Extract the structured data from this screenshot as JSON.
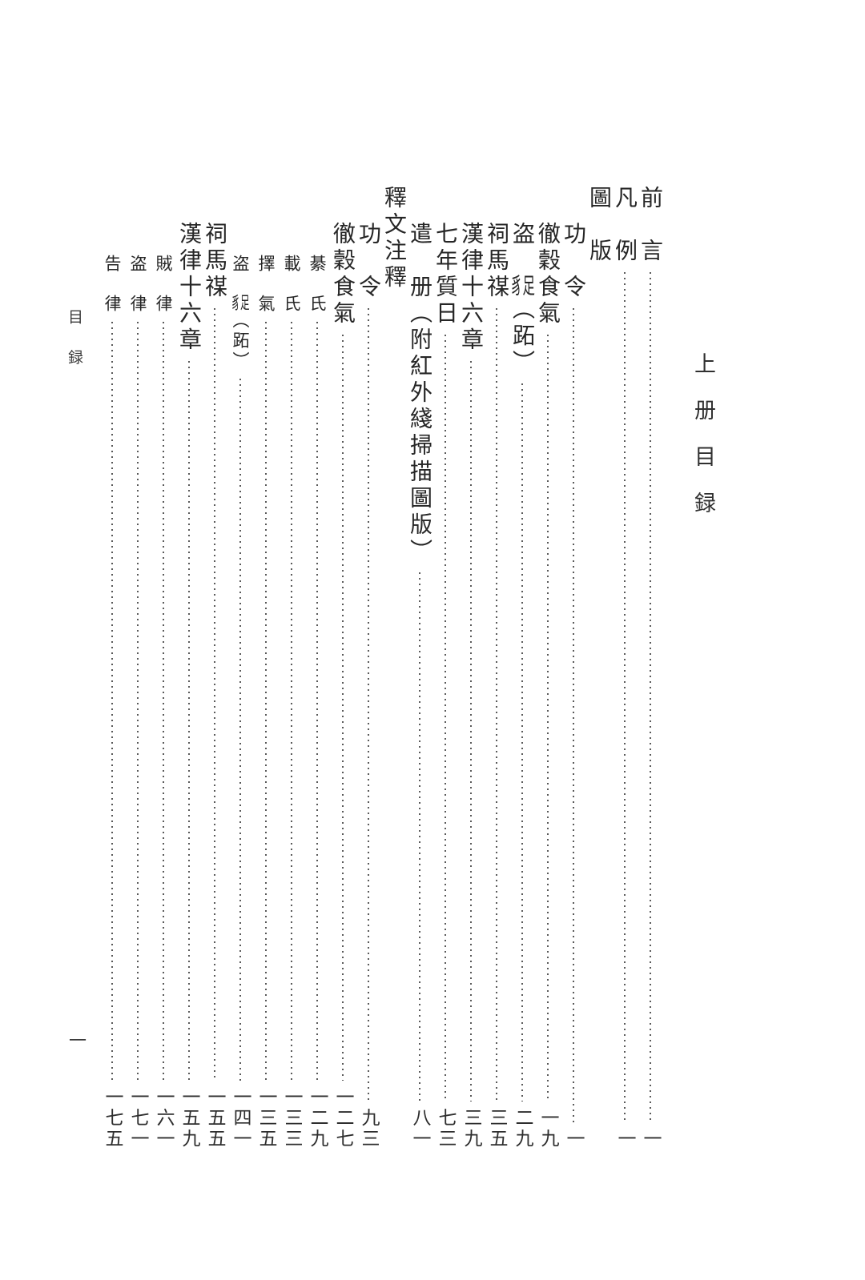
{
  "page": {
    "background": "#ffffff",
    "ink_color": "#262626"
  },
  "volume_title": "上册目録",
  "margin_header": "目録",
  "folio": "一",
  "toc": {
    "entries": [
      {
        "type": "heading",
        "title": "前　言",
        "page": "一"
      },
      {
        "type": "heading",
        "title": "凡　例",
        "page": "一"
      },
      {
        "type": "heading",
        "title": "圖　版",
        "page": null
      },
      {
        "type": "entry",
        "title": "功　令",
        "page": "一"
      },
      {
        "type": "entry",
        "title": "徹穀食氣",
        "page": "一九"
      },
      {
        "type": "entry",
        "title_parts": [
          {
            "text": "盗　"
          },
          {
            "text": "豸足",
            "combine": true
          },
          {
            "text": "（跖）"
          }
        ],
        "page": "二九"
      },
      {
        "type": "entry",
        "title": "祠馬禖",
        "page": "三五"
      },
      {
        "type": "entry",
        "title": "漢律十六章",
        "page": "三九"
      },
      {
        "type": "entry",
        "title": "七年質日",
        "page": "七三"
      },
      {
        "type": "entry",
        "title": "遣　册（附紅外綫掃描圖版）",
        "page": "八一"
      },
      {
        "type": "heading",
        "title": "釋文注釋",
        "page": null
      },
      {
        "type": "entry",
        "title": "功　令",
        "page": "九三"
      },
      {
        "type": "entry",
        "title": "徹穀食氣",
        "page": "一二七"
      },
      {
        "type": "subentry",
        "title": "綦　氏",
        "page": "一二九"
      },
      {
        "type": "subentry",
        "title": "載　氏",
        "page": "一三三"
      },
      {
        "type": "subentry",
        "title": "擇　氣",
        "page": "一三五"
      },
      {
        "type": "subentry",
        "title_parts": [
          {
            "text": "盗　"
          },
          {
            "text": "豸足",
            "combine": true
          },
          {
            "text": "（跖）"
          }
        ],
        "page": "一四一"
      },
      {
        "type": "entry",
        "title": "祠馬禖",
        "page": "一五五"
      },
      {
        "type": "entry",
        "title": "漢律十六章",
        "page": "一五九"
      },
      {
        "type": "subentry",
        "title": "賊　律",
        "page": "一六一"
      },
      {
        "type": "subentry",
        "title": "盗　律",
        "page": "一七一"
      },
      {
        "type": "subentry",
        "title": "告　律",
        "page": "一七五"
      }
    ]
  }
}
